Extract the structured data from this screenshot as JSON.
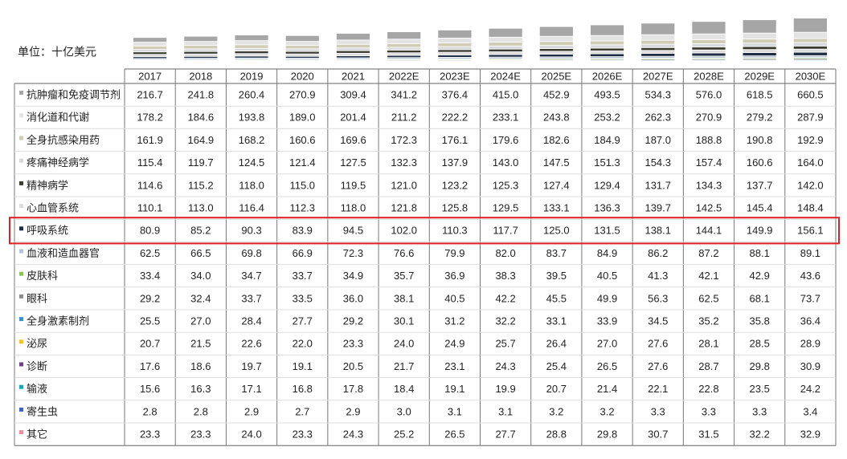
{
  "unit": "单位：十亿美元",
  "table": {
    "columns": [
      "2017",
      "2018",
      "2019",
      "2020",
      "2021",
      "2022E",
      "2023E",
      "2024E",
      "2025E",
      "2026E",
      "2027E",
      "2028E",
      "2029E",
      "2030E"
    ],
    "rows": [
      {
        "label": "抗肿瘤和免疫调节剂",
        "color": "#a6a6a6",
        "values": [
          "216.7",
          "241.8",
          "260.4",
          "270.9",
          "309.4",
          "341.2",
          "376.4",
          "415.0",
          "452.9",
          "493.5",
          "534.3",
          "576.0",
          "618.5",
          "660.5"
        ]
      },
      {
        "label": "消化道和代谢",
        "color": "#e3e3e3",
        "values": [
          "178.2",
          "184.6",
          "193.8",
          "189.0",
          "201.4",
          "211.2",
          "222.2",
          "233.1",
          "243.8",
          "253.2",
          "262.3",
          "270.9",
          "279.2",
          "287.9"
        ]
      },
      {
        "label": "全身抗感染用药",
        "color": "#cfcdb6",
        "values": [
          "161.9",
          "164.9",
          "168.2",
          "160.6",
          "169.6",
          "172.3",
          "176.1",
          "179.6",
          "182.6",
          "184.9",
          "187.0",
          "188.8",
          "190.8",
          "192.9"
        ]
      },
      {
        "label": "疼痛神经病学",
        "color": "#d6d8dc",
        "values": [
          "115.4",
          "119.7",
          "124.5",
          "121.4",
          "127.5",
          "132.3",
          "137.9",
          "143.0",
          "147.5",
          "151.3",
          "154.3",
          "157.4",
          "160.6",
          "164.0"
        ]
      },
      {
        "label": "精神病学",
        "color": "#3a3a30",
        "values": [
          "114.6",
          "115.2",
          "118.0",
          "115.0",
          "119.5",
          "121.0",
          "123.2",
          "125.3",
          "127.4",
          "129.4",
          "131.7",
          "134.3",
          "137.7",
          "142.0"
        ]
      },
      {
        "label": "心血管系统",
        "color": "#dcdcdc",
        "values": [
          "110.1",
          "113.0",
          "116.4",
          "112.3",
          "118.0",
          "121.8",
          "125.8",
          "129.5",
          "133.1",
          "136.3",
          "139.7",
          "142.5",
          "145.4",
          "148.4"
        ]
      },
      {
        "label": "呼吸系统",
        "color": "#1f2c44",
        "values": [
          "80.9",
          "85.2",
          "90.3",
          "83.9",
          "94.5",
          "102.0",
          "110.3",
          "117.7",
          "125.0",
          "131.5",
          "138.1",
          "144.1",
          "149.9",
          "156.1"
        ]
      },
      {
        "label": "血液和造血器官",
        "color": "#b8c4d4",
        "values": [
          "62.5",
          "66.5",
          "69.8",
          "66.9",
          "72.3",
          "76.6",
          "79.9",
          "82.0",
          "83.7",
          "84.9",
          "86.2",
          "87.2",
          "88.1",
          "89.1"
        ]
      },
      {
        "label": "皮肤科",
        "color": "#8dc45a",
        "values": [
          "33.4",
          "34.0",
          "34.7",
          "33.7",
          "34.9",
          "35.7",
          "36.9",
          "38.3",
          "39.5",
          "40.5",
          "41.3",
          "42.1",
          "42.9",
          "43.6"
        ]
      },
      {
        "label": "眼科",
        "color": "#8c8c8c",
        "values": [
          "29.2",
          "32.4",
          "33.7",
          "33.5",
          "36.0",
          "38.1",
          "40.5",
          "42.2",
          "45.5",
          "49.9",
          "56.3",
          "62.5",
          "68.1",
          "73.7"
        ]
      },
      {
        "label": "全身激素制剂",
        "color": "#3a8fd8",
        "values": [
          "25.5",
          "27.0",
          "28.4",
          "27.7",
          "29.2",
          "30.1",
          "31.2",
          "32.2",
          "33.1",
          "33.9",
          "34.5",
          "35.2",
          "35.8",
          "36.4"
        ]
      },
      {
        "label": "泌尿",
        "color": "#f2c12e",
        "values": [
          "20.7",
          "21.5",
          "22.6",
          "22.0",
          "23.3",
          "24.0",
          "24.9",
          "25.7",
          "26.4",
          "27.0",
          "27.6",
          "28.1",
          "28.5",
          "28.9"
        ]
      },
      {
        "label": "诊断",
        "color": "#6a3f9a",
        "values": [
          "17.6",
          "18.6",
          "19.7",
          "19.1",
          "20.5",
          "21.7",
          "23.1",
          "24.3",
          "25.4",
          "26.5",
          "27.6",
          "28.7",
          "29.8",
          "30.9"
        ]
      },
      {
        "label": "输液",
        "color": "#1ba6b8",
        "values": [
          "15.6",
          "16.3",
          "17.1",
          "16.8",
          "17.8",
          "18.4",
          "19.1",
          "19.9",
          "20.7",
          "21.4",
          "22.1",
          "22.8",
          "23.5",
          "24.2"
        ]
      },
      {
        "label": "寄生虫",
        "color": "#3b5fd0",
        "values": [
          "2.8",
          "2.8",
          "2.9",
          "2.7",
          "2.9",
          "3.0",
          "3.1",
          "3.1",
          "3.2",
          "3.2",
          "3.3",
          "3.3",
          "3.3",
          "3.4"
        ]
      },
      {
        "label": "其它",
        "color": "#f08aa0",
        "values": [
          "23.3",
          "23.3",
          "24.0",
          "23.3",
          "24.3",
          "25.2",
          "26.5",
          "27.7",
          "28.8",
          "29.8",
          "30.7",
          "31.5",
          "32.2",
          "32.9"
        ]
      }
    ]
  }
}
